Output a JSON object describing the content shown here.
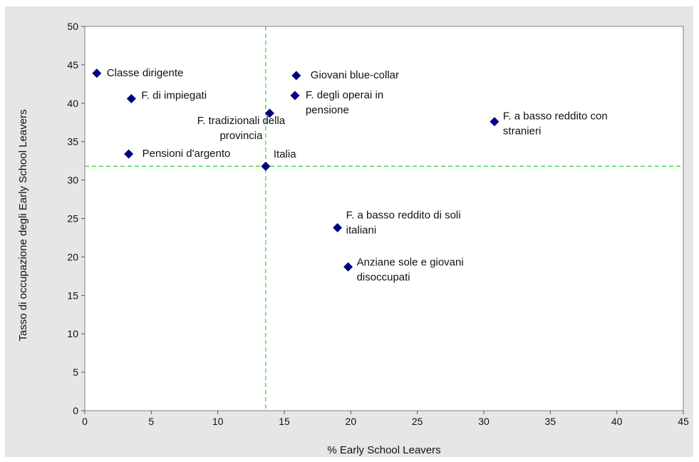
{
  "top_title": "",
  "chart_data": {
    "type": "scatter",
    "title": "",
    "xlabel": "% Early School Leavers",
    "ylabel": "Tasso di occupazione degli Early School Leavers",
    "xlim": [
      0,
      45
    ],
    "ylim": [
      0,
      50
    ],
    "x_ticks": [
      0,
      5,
      10,
      15,
      20,
      25,
      30,
      35,
      40,
      45
    ],
    "y_ticks": [
      0,
      5,
      10,
      15,
      20,
      25,
      30,
      35,
      40,
      45,
      50
    ],
    "grid": false,
    "legend": "none",
    "reference_lines": {
      "x": 13.6,
      "y": 31.8,
      "color": "#33dd33",
      "style": "dashed"
    },
    "marker": {
      "shape": "diamond",
      "color": "#000080"
    },
    "points": [
      {
        "label": "Classe dirigente",
        "x": 0.9,
        "y": 43.9
      },
      {
        "label": "F. di impiegati",
        "x": 3.5,
        "y": 40.6
      },
      {
        "label": "Pensioni d'argento",
        "x": 3.3,
        "y": 33.4
      },
      {
        "label": "F. tradizionali della provincia",
        "x": 13.9,
        "y": 38.7
      },
      {
        "label": "Italia",
        "x": 13.6,
        "y": 31.8
      },
      {
        "label": "Giovani blue-collar",
        "x": 15.9,
        "y": 43.6
      },
      {
        "label": "F. degli operai in pensione",
        "x": 15.8,
        "y": 41.0
      },
      {
        "label": "F. a basso reddito con stranieri",
        "x": 30.8,
        "y": 37.6
      },
      {
        "label": "F. a basso reddito di soli italiani",
        "x": 19.0,
        "y": 23.8
      },
      {
        "label": "Anziane sole e giovani disoccupati",
        "x": 19.8,
        "y": 18.7
      }
    ]
  }
}
